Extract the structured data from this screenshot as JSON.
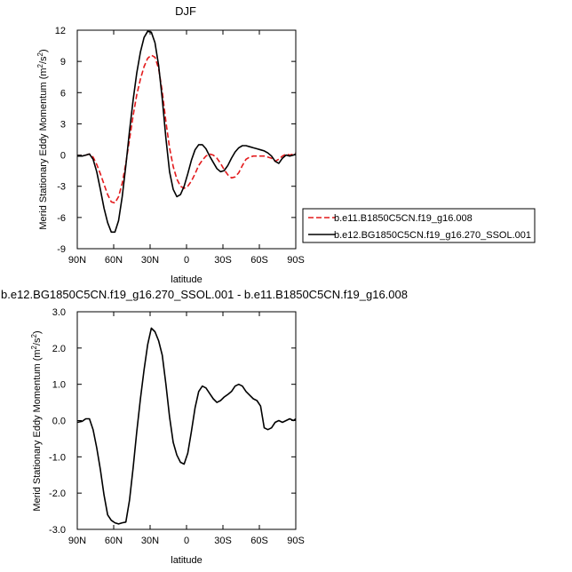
{
  "chart_data": [
    {
      "type": "line",
      "title": "DJF",
      "xlabel": "latitude",
      "ylabel": "Merid Stationary Eddy Momentum (m²/s²)",
      "xlim": [
        90,
        -90
      ],
      "ylim": [
        -9,
        12
      ],
      "xticks": [
        90,
        60,
        30,
        0,
        -30,
        -60,
        -90
      ],
      "xtick_labels": [
        "90N",
        "60N",
        "30N",
        "0",
        "30S",
        "60S",
        "90S"
      ],
      "yticks": [
        -9,
        -6,
        -3,
        0,
        3,
        6,
        9,
        12
      ],
      "ytick_labels": [
        "-9",
        "-6",
        "-3",
        "0",
        "3",
        "6",
        "9",
        "12"
      ],
      "grid": false,
      "legend_position": "right",
      "series": [
        {
          "name": "b.e11.B1850C5CN.f19_g16.008",
          "color": "#e31a1c",
          "dash": "dashed",
          "x": [
            90,
            86,
            83,
            80,
            77,
            74,
            71,
            68,
            65,
            62,
            59,
            56,
            53,
            50,
            47,
            44,
            41,
            38,
            35,
            32,
            29,
            26,
            23,
            20,
            17,
            14,
            11,
            8,
            5,
            2,
            -1,
            -4,
            -7,
            -10,
            -13,
            -16,
            -19,
            -22,
            -25,
            -28,
            -31,
            -34,
            -37,
            -40,
            -43,
            -46,
            -49,
            -52,
            -55,
            -58,
            -61,
            -64,
            -67,
            -70,
            -73,
            -76,
            -79,
            -82,
            -85,
            -88,
            -90
          ],
          "y": [
            -0.1,
            -0.1,
            0.0,
            0.1,
            -0.2,
            -0.9,
            -1.8,
            -2.8,
            -3.8,
            -4.5,
            -4.6,
            -4.0,
            -2.7,
            -0.8,
            1.5,
            3.8,
            5.8,
            7.3,
            8.5,
            9.3,
            9.6,
            9.4,
            8.3,
            6.1,
            3.2,
            0.7,
            -1.1,
            -2.3,
            -3.0,
            -3.2,
            -3.0,
            -2.5,
            -1.8,
            -1.0,
            -0.5,
            -0.1,
            0.1,
            0.0,
            -0.3,
            -0.8,
            -1.4,
            -1.9,
            -2.2,
            -2.1,
            -1.7,
            -1.0,
            -0.4,
            -0.2,
            -0.1,
            -0.1,
            -0.1,
            -0.1,
            -0.2,
            -0.3,
            -0.6,
            -0.4,
            -0.1,
            0.1,
            0.0,
            0.1,
            0.2
          ]
        },
        {
          "name": "b.e12.BG1850C5CN.f19_g16.270_SSOL.001",
          "color": "#000000",
          "dash": "solid",
          "x": [
            90,
            86,
            83,
            80,
            77,
            74,
            71,
            68,
            65,
            62,
            59,
            56,
            53,
            50,
            47,
            44,
            41,
            38,
            35,
            32,
            29,
            26,
            23,
            20,
            17,
            14,
            11,
            8,
            5,
            2,
            -1,
            -4,
            -7,
            -10,
            -13,
            -16,
            -19,
            -22,
            -25,
            -28,
            -31,
            -34,
            -37,
            -40,
            -43,
            -46,
            -49,
            -52,
            -55,
            -58,
            -61,
            -64,
            -67,
            -70,
            -73,
            -76,
            -79,
            -82,
            -85,
            -88,
            -90
          ],
          "y": [
            -0.1,
            -0.1,
            0.0,
            0.1,
            -0.4,
            -1.6,
            -3.3,
            -5.1,
            -6.5,
            -7.4,
            -7.4,
            -6.3,
            -4.0,
            -1.0,
            2.3,
            5.3,
            7.9,
            9.9,
            11.3,
            11.9,
            11.8,
            10.8,
            8.6,
            5.4,
            1.6,
            -1.6,
            -3.3,
            -4.0,
            -3.8,
            -3.0,
            -1.8,
            -0.5,
            0.5,
            1.0,
            1.0,
            0.6,
            -0.1,
            -0.7,
            -1.3,
            -1.6,
            -1.5,
            -1.0,
            -0.3,
            0.3,
            0.7,
            0.9,
            0.9,
            0.8,
            0.7,
            0.6,
            0.5,
            0.4,
            0.2,
            -0.1,
            -0.6,
            -0.8,
            -0.3,
            0.0,
            -0.1,
            0.0,
            0.1
          ]
        }
      ]
    },
    {
      "type": "line",
      "title": "b.e12.BG1850C5CN.f19_g16.270_SSOL.001 - b.e11.B1850C5CN.f19_g16.008",
      "xlabel": "latitude",
      "ylabel": "Merid Stationary Eddy Momentum (m²/s²)",
      "xlim": [
        90,
        -90
      ],
      "ylim": [
        -3,
        3
      ],
      "xticks": [
        90,
        60,
        30,
        0,
        -30,
        -60,
        -90
      ],
      "xtick_labels": [
        "90N",
        "60N",
        "30N",
        "0",
        "30S",
        "60S",
        "90S"
      ],
      "yticks": [
        -3,
        -2,
        -1,
        0,
        1,
        2,
        3
      ],
      "ytick_labels": [
        "-3.0",
        "-2.0",
        "-1.0",
        "0.0",
        "1.0",
        "2.0",
        "3.0"
      ],
      "grid": false,
      "series": [
        {
          "name": "",
          "color": "#000000",
          "dash": "solid",
          "x": [
            90,
            86,
            83,
            80,
            77,
            74,
            71,
            68,
            65,
            62,
            59,
            56,
            53,
            50,
            47,
            44,
            41,
            38,
            35,
            32,
            29,
            26,
            23,
            20,
            17,
            14,
            11,
            8,
            5,
            2,
            -1,
            -4,
            -7,
            -10,
            -13,
            -16,
            -19,
            -22,
            -25,
            -28,
            -31,
            -34,
            -37,
            -40,
            -43,
            -46,
            -49,
            -52,
            -55,
            -58,
            -61,
            -64,
            -67,
            -70,
            -73,
            -76,
            -79,
            -82,
            -85,
            -88,
            -90
          ],
          "y": [
            -0.05,
            -0.02,
            0.05,
            0.05,
            -0.25,
            -0.75,
            -1.35,
            -2.05,
            -2.6,
            -2.75,
            -2.82,
            -2.85,
            -2.82,
            -2.8,
            -2.2,
            -1.3,
            -0.3,
            0.6,
            1.4,
            2.1,
            2.55,
            2.45,
            2.2,
            1.8,
            1.0,
            0.1,
            -0.6,
            -0.95,
            -1.15,
            -1.2,
            -0.9,
            -0.3,
            0.35,
            0.8,
            0.95,
            0.9,
            0.75,
            0.6,
            0.5,
            0.55,
            0.65,
            0.72,
            0.8,
            0.95,
            1.0,
            0.95,
            0.8,
            0.7,
            0.6,
            0.55,
            0.4,
            -0.2,
            -0.25,
            -0.2,
            -0.05,
            0.0,
            -0.05,
            0.0,
            0.05,
            0.0,
            0.05
          ]
        }
      ]
    }
  ]
}
